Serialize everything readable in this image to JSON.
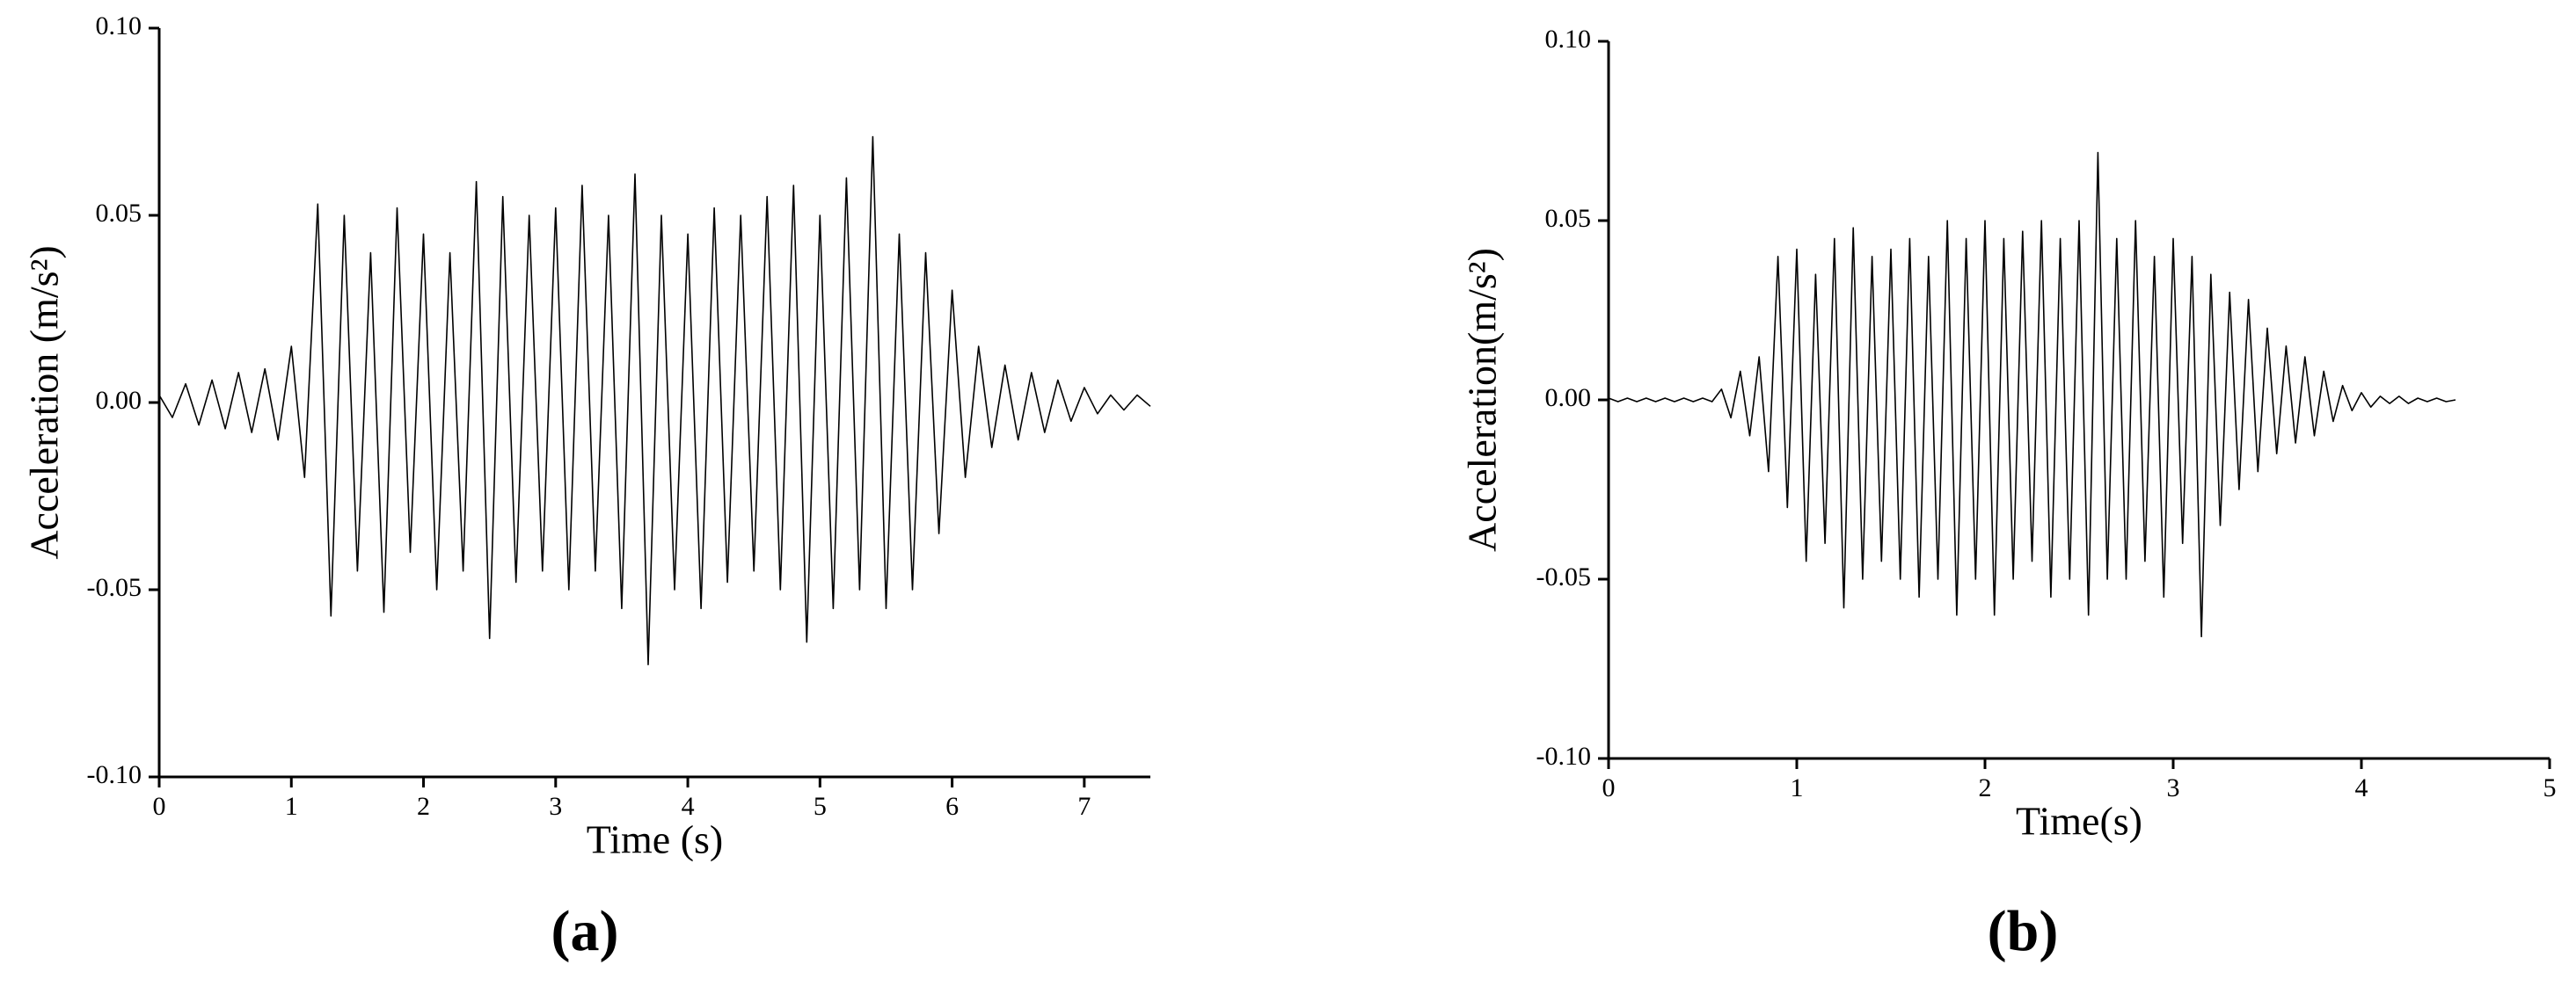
{
  "chart_data": [
    {
      "type": "line",
      "label": "(a)",
      "xlabel": "Time (s)",
      "ylabel": "Acceleration (m/s²)",
      "color": "#000000",
      "xlim": [
        0,
        7.5
      ],
      "ylim": [
        -0.1,
        0.1
      ],
      "xticks": [
        0,
        1,
        2,
        3,
        4,
        5,
        6,
        7
      ],
      "yticks": [
        {
          "value": -0.1,
          "label": "-0.10"
        },
        -0.05,
        {
          "value": 0,
          "label": "0.00"
        },
        0.05,
        {
          "value": 0.1,
          "label": "0.10"
        }
      ],
      "x": [
        0,
        0.1,
        0.2,
        0.3,
        0.4,
        0.5,
        0.6,
        0.7,
        0.8,
        0.9,
        1,
        1.1,
        1.2,
        1.3,
        1.4,
        1.5,
        1.6,
        1.7,
        1.8,
        1.9,
        2,
        2.1,
        2.2,
        2.3,
        2.4,
        2.5,
        2.6,
        2.7,
        2.8,
        2.9,
        3,
        3.1,
        3.2,
        3.3,
        3.4,
        3.5,
        3.6,
        3.7,
        3.8,
        3.9,
        4,
        4.1,
        4.2,
        4.3,
        4.4,
        4.5,
        4.6,
        4.7,
        4.8,
        4.9,
        5,
        5.1,
        5.2,
        5.3,
        5.4,
        5.5,
        5.6,
        5.7,
        5.8,
        5.9,
        6,
        6.1,
        6.2,
        6.3,
        6.4,
        6.5,
        6.6,
        6.7,
        6.8,
        6.9,
        7,
        7.1,
        7.2,
        7.3,
        7.4,
        7.5
      ],
      "values": [
        0.002,
        -0.004,
        0.005,
        -0.006,
        0.006,
        -0.007,
        0.008,
        -0.008,
        0.009,
        -0.01,
        0.015,
        -0.02,
        0.053,
        -0.057,
        0.05,
        -0.045,
        0.04,
        -0.056,
        0.052,
        -0.04,
        0.045,
        -0.05,
        0.04,
        -0.045,
        0.059,
        -0.063,
        0.055,
        -0.048,
        0.05,
        -0.045,
        0.052,
        -0.05,
        0.058,
        -0.045,
        0.05,
        -0.055,
        0.061,
        -0.07,
        0.05,
        -0.05,
        0.045,
        -0.055,
        0.052,
        -0.048,
        0.05,
        -0.045,
        0.055,
        -0.05,
        0.058,
        -0.064,
        0.05,
        -0.055,
        0.06,
        -0.05,
        0.071,
        -0.055,
        0.045,
        -0.05,
        0.04,
        -0.035,
        0.03,
        -0.02,
        0.015,
        -0.012,
        0.01,
        -0.01,
        0.008,
        -0.008,
        0.006,
        -0.005,
        0.004,
        -0.003,
        0.002,
        -0.002,
        0.002,
        -0.001
      ]
    },
    {
      "type": "line",
      "label": "(b)",
      "xlabel": "Time(s)",
      "ylabel": "Acceleration(m/s²)",
      "color": "#000000",
      "xlim": [
        0,
        5
      ],
      "ylim": [
        -0.1,
        0.1
      ],
      "xticks": [
        0,
        1,
        2,
        3,
        4,
        5
      ],
      "yticks": [
        {
          "value": -0.1,
          "label": "-0.10"
        },
        -0.05,
        {
          "value": 0,
          "label": "0.00"
        },
        0.05,
        {
          "value": 0.1,
          "label": "0.10"
        }
      ],
      "x": [
        0,
        0.05,
        0.1,
        0.15,
        0.2,
        0.25,
        0.3,
        0.35,
        0.4,
        0.45,
        0.5,
        0.55,
        0.6,
        0.65,
        0.7,
        0.75,
        0.8,
        0.85,
        0.9,
        0.95,
        1,
        1.05,
        1.1,
        1.15,
        1.2,
        1.25,
        1.3,
        1.35,
        1.4,
        1.45,
        1.5,
        1.55,
        1.6,
        1.65,
        1.7,
        1.75,
        1.8,
        1.85,
        1.9,
        1.95,
        2,
        2.05,
        2.1,
        2.15,
        2.2,
        2.25,
        2.3,
        2.35,
        2.4,
        2.45,
        2.5,
        2.55,
        2.6,
        2.65,
        2.7,
        2.75,
        2.8,
        2.85,
        2.9,
        2.95,
        3,
        3.05,
        3.1,
        3.15,
        3.2,
        3.25,
        3.3,
        3.35,
        3.4,
        3.45,
        3.5,
        3.55,
        3.6,
        3.65,
        3.7,
        3.75,
        3.8,
        3.85,
        3.9,
        3.95,
        4,
        4.05,
        4.1,
        4.15,
        4.2,
        4.25,
        4.3,
        4.35,
        4.4,
        4.45,
        4.5
      ],
      "values": [
        0.0005,
        -0.0005,
        0.0005,
        -0.0005,
        0.0005,
        -0.0005,
        0.0005,
        -0.0005,
        0.0005,
        -0.0005,
        0.0005,
        -0.0005,
        0.003,
        -0.005,
        0.008,
        -0.01,
        0.012,
        -0.02,
        0.04,
        -0.03,
        0.042,
        -0.045,
        0.035,
        -0.04,
        0.045,
        -0.058,
        0.048,
        -0.05,
        0.04,
        -0.045,
        0.042,
        -0.05,
        0.045,
        -0.055,
        0.04,
        -0.05,
        0.05,
        -0.06,
        0.045,
        -0.05,
        0.05,
        -0.06,
        0.045,
        -0.05,
        0.047,
        -0.045,
        0.05,
        -0.055,
        0.045,
        -0.05,
        0.05,
        -0.06,
        0.069,
        -0.05,
        0.045,
        -0.05,
        0.05,
        -0.045,
        0.04,
        -0.055,
        0.045,
        -0.04,
        0.04,
        -0.066,
        0.035,
        -0.035,
        0.03,
        -0.025,
        0.028,
        -0.02,
        0.02,
        -0.015,
        0.015,
        -0.012,
        0.012,
        -0.01,
        0.008,
        -0.006,
        0.004,
        -0.003,
        0.002,
        -0.002,
        0.001,
        -0.001,
        0.001,
        -0.001,
        0.0005,
        -0.0005,
        0.0005,
        -0.0005,
        0
      ]
    }
  ]
}
